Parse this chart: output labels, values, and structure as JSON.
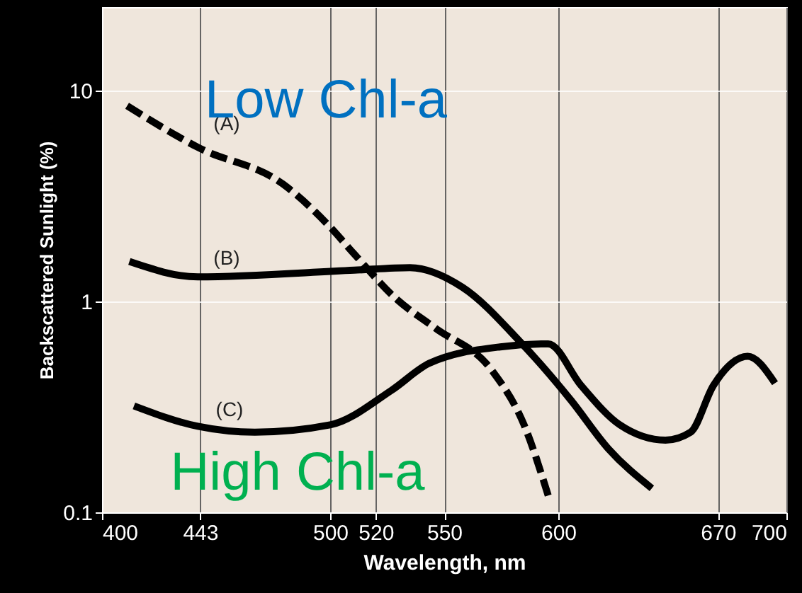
{
  "chart_data": {
    "type": "line",
    "xlabel": "Wavelength, nm",
    "ylabel": "Backscattered Sunlight (%)",
    "xlim": [
      400,
      700
    ],
    "xticks": [
      400,
      443,
      500,
      520,
      550,
      600,
      670,
      700
    ],
    "ylim": [
      0.1,
      25
    ],
    "yticks": [
      0.1,
      1,
      10
    ],
    "log": "y",
    "grid": true,
    "marker": "none",
    "series": [
      {
        "color": "#000000",
        "line_style": "dashed",
        "x": [
          411,
          442,
          479.5,
          500,
          510.6,
          529,
          546,
          571,
          585,
          595.6
        ],
        "values": [
          8.5,
          5.4,
          3.6,
          2.26,
          1.68,
          1.03,
          0.75,
          0.47,
          0.26,
          0.12
        ]
      },
      {
        "color": "#000000",
        "line_style": "solid",
        "x": [
          412,
          442,
          510.6,
          535,
          558,
          583,
          605.6,
          622,
          641
        ],
        "values": [
          1.55,
          1.31,
          1.41,
          1.45,
          1.17,
          0.65,
          0.34,
          0.2,
          0.13
        ]
      },
      {
        "color": "#000000",
        "line_style": "solid",
        "x": [
          414,
          442,
          467,
          500,
          527,
          543.5,
          574.5,
          595.6,
          610,
          627,
          647,
          658,
          668,
          683,
          695
        ],
        "values": [
          0.32,
          0.256,
          0.24,
          0.26,
          0.38,
          0.51,
          0.61,
          0.63,
          0.4,
          0.26,
          0.22,
          0.24,
          0.4,
          0.55,
          0.41
        ]
      }
    ],
    "annotations": [
      "(A)",
      "(B)",
      "(C)",
      "Low Chl-a",
      "High Chl-a"
    ]
  }
}
